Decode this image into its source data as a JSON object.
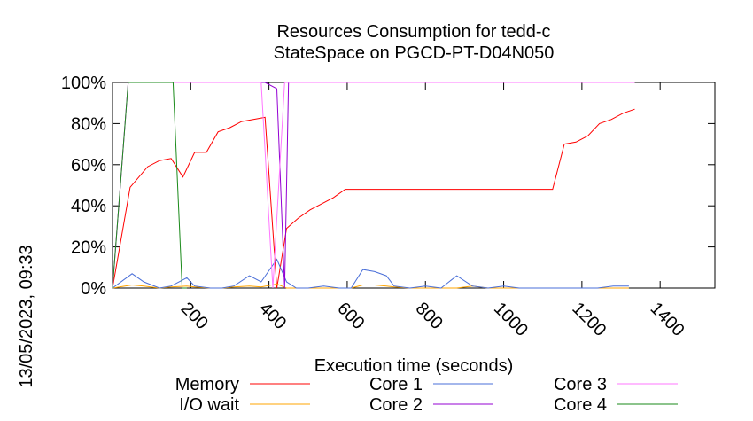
{
  "chart_data": {
    "type": "line",
    "title": "Resources Consumption for tedd-c",
    "subtitle": "StateSpace on PGCD-PT-D04N050",
    "xlabel": "Execution time (seconds)",
    "ylabel": "",
    "side_label": "13/05/2023, 09:33",
    "xlim": [
      0,
      1540
    ],
    "ylim": [
      0,
      100
    ],
    "x_ticks": [
      200,
      400,
      600,
      800,
      1000,
      1200,
      1400
    ],
    "y_ticks": [
      0,
      20,
      40,
      60,
      80,
      100
    ],
    "y_tick_labels": [
      "0%",
      "20%",
      "40%",
      "60%",
      "80%",
      "100%"
    ],
    "grid": false,
    "legend_position": "bottom",
    "series": [
      {
        "name": "Memory",
        "color": "#ff0000",
        "points": [
          [
            0,
            0
          ],
          [
            45,
            49
          ],
          [
            90,
            59
          ],
          [
            120,
            62
          ],
          [
            150,
            63
          ],
          [
            180,
            54
          ],
          [
            210,
            66
          ],
          [
            240,
            66
          ],
          [
            270,
            76
          ],
          [
            300,
            78
          ],
          [
            330,
            81
          ],
          [
            360,
            82
          ],
          [
            390,
            83
          ],
          [
            420,
            0
          ],
          [
            445,
            29
          ],
          [
            475,
            34
          ],
          [
            505,
            38
          ],
          [
            535,
            41
          ],
          [
            565,
            44
          ],
          [
            595,
            48
          ],
          [
            625,
            48
          ],
          [
            655,
            48
          ],
          [
            685,
            48
          ],
          [
            715,
            48
          ],
          [
            745,
            48
          ],
          [
            775,
            48
          ],
          [
            805,
            48
          ],
          [
            835,
            48
          ],
          [
            865,
            48
          ],
          [
            895,
            48
          ],
          [
            925,
            48
          ],
          [
            955,
            48
          ],
          [
            985,
            48
          ],
          [
            1015,
            48
          ],
          [
            1045,
            48
          ],
          [
            1075,
            48
          ],
          [
            1105,
            48
          ],
          [
            1125,
            48
          ],
          [
            1155,
            70
          ],
          [
            1185,
            71
          ],
          [
            1215,
            74
          ],
          [
            1245,
            80
          ],
          [
            1275,
            82
          ],
          [
            1305,
            85
          ],
          [
            1335,
            87
          ]
        ]
      },
      {
        "name": "I/O wait",
        "color": "#ffa500",
        "points": [
          [
            0,
            0
          ],
          [
            50,
            1.5
          ],
          [
            80,
            1
          ],
          [
            120,
            0
          ],
          [
            150,
            0.5
          ],
          [
            190,
            1
          ],
          [
            210,
            0.5
          ],
          [
            250,
            0
          ],
          [
            280,
            0
          ],
          [
            310,
            0.5
          ],
          [
            350,
            1
          ],
          [
            380,
            0.5
          ],
          [
            420,
            2
          ],
          [
            445,
            0
          ],
          [
            470,
            0
          ],
          [
            500,
            0
          ],
          [
            540,
            0
          ],
          [
            580,
            0
          ],
          [
            610,
            0
          ],
          [
            640,
            1.5
          ],
          [
            670,
            1.5
          ],
          [
            700,
            1
          ],
          [
            720,
            0.5
          ],
          [
            760,
            0
          ],
          [
            800,
            0
          ],
          [
            840,
            0
          ],
          [
            880,
            0
          ],
          [
            920,
            1
          ],
          [
            960,
            0
          ],
          [
            1000,
            0
          ],
          [
            1040,
            0
          ],
          [
            1080,
            0
          ],
          [
            1120,
            0
          ],
          [
            1160,
            0
          ],
          [
            1200,
            0
          ],
          [
            1240,
            0
          ],
          [
            1280,
            0
          ],
          [
            1320,
            0
          ]
        ]
      },
      {
        "name": "Core 1",
        "color": "#4a6fd8",
        "points": [
          [
            0,
            0
          ],
          [
            50,
            7
          ],
          [
            80,
            3
          ],
          [
            120,
            0
          ],
          [
            150,
            1
          ],
          [
            190,
            5
          ],
          [
            210,
            1
          ],
          [
            250,
            0
          ],
          [
            280,
            0
          ],
          [
            310,
            1
          ],
          [
            350,
            6
          ],
          [
            380,
            3
          ],
          [
            420,
            14
          ],
          [
            445,
            3
          ],
          [
            470,
            0
          ],
          [
            500,
            0
          ],
          [
            540,
            1
          ],
          [
            580,
            0
          ],
          [
            610,
            0
          ],
          [
            640,
            9
          ],
          [
            670,
            8
          ],
          [
            700,
            6
          ],
          [
            720,
            1
          ],
          [
            760,
            0
          ],
          [
            800,
            1
          ],
          [
            840,
            0
          ],
          [
            880,
            6
          ],
          [
            920,
            1
          ],
          [
            960,
            0
          ],
          [
            1000,
            1
          ],
          [
            1040,
            0
          ],
          [
            1080,
            0
          ],
          [
            1120,
            0
          ],
          [
            1160,
            0
          ],
          [
            1200,
            0
          ],
          [
            1240,
            0
          ],
          [
            1280,
            1
          ],
          [
            1320,
            1
          ]
        ]
      },
      {
        "name": "Core 2",
        "color": "#9400d3",
        "points": [
          [
            0,
            0
          ],
          [
            40,
            100
          ],
          [
            100,
            100
          ],
          [
            150,
            100
          ],
          [
            200,
            100
          ],
          [
            250,
            100
          ],
          [
            300,
            100
          ],
          [
            350,
            100
          ],
          [
            390,
            100
          ],
          [
            420,
            97
          ],
          [
            440,
            0
          ],
          [
            450,
            100
          ],
          [
            500,
            100
          ],
          [
            600,
            100
          ],
          [
            700,
            100
          ],
          [
            800,
            100
          ],
          [
            900,
            100
          ],
          [
            1000,
            100
          ],
          [
            1100,
            100
          ],
          [
            1200,
            100
          ],
          [
            1300,
            100
          ],
          [
            1335,
            100
          ]
        ]
      },
      {
        "name": "Core 3",
        "color": "#ff77ff",
        "points": [
          [
            0,
            0
          ],
          [
            40,
            100
          ],
          [
            100,
            100
          ],
          [
            150,
            100
          ],
          [
            200,
            100
          ],
          [
            250,
            100
          ],
          [
            300,
            100
          ],
          [
            350,
            100
          ],
          [
            380,
            100
          ],
          [
            410,
            0
          ],
          [
            440,
            100
          ],
          [
            500,
            100
          ],
          [
            600,
            100
          ],
          [
            700,
            100
          ],
          [
            800,
            100
          ],
          [
            900,
            100
          ],
          [
            1000,
            100
          ],
          [
            1100,
            100
          ],
          [
            1200,
            100
          ],
          [
            1300,
            100
          ],
          [
            1335,
            100
          ]
        ]
      },
      {
        "name": "Core 4",
        "color": "#1a8a1a",
        "points": [
          [
            0,
            0
          ],
          [
            40,
            100
          ],
          [
            100,
            100
          ],
          [
            155,
            100
          ],
          [
            178,
            0
          ],
          [
            190,
            0
          ]
        ]
      }
    ],
    "x_data_scale_note": ""
  }
}
